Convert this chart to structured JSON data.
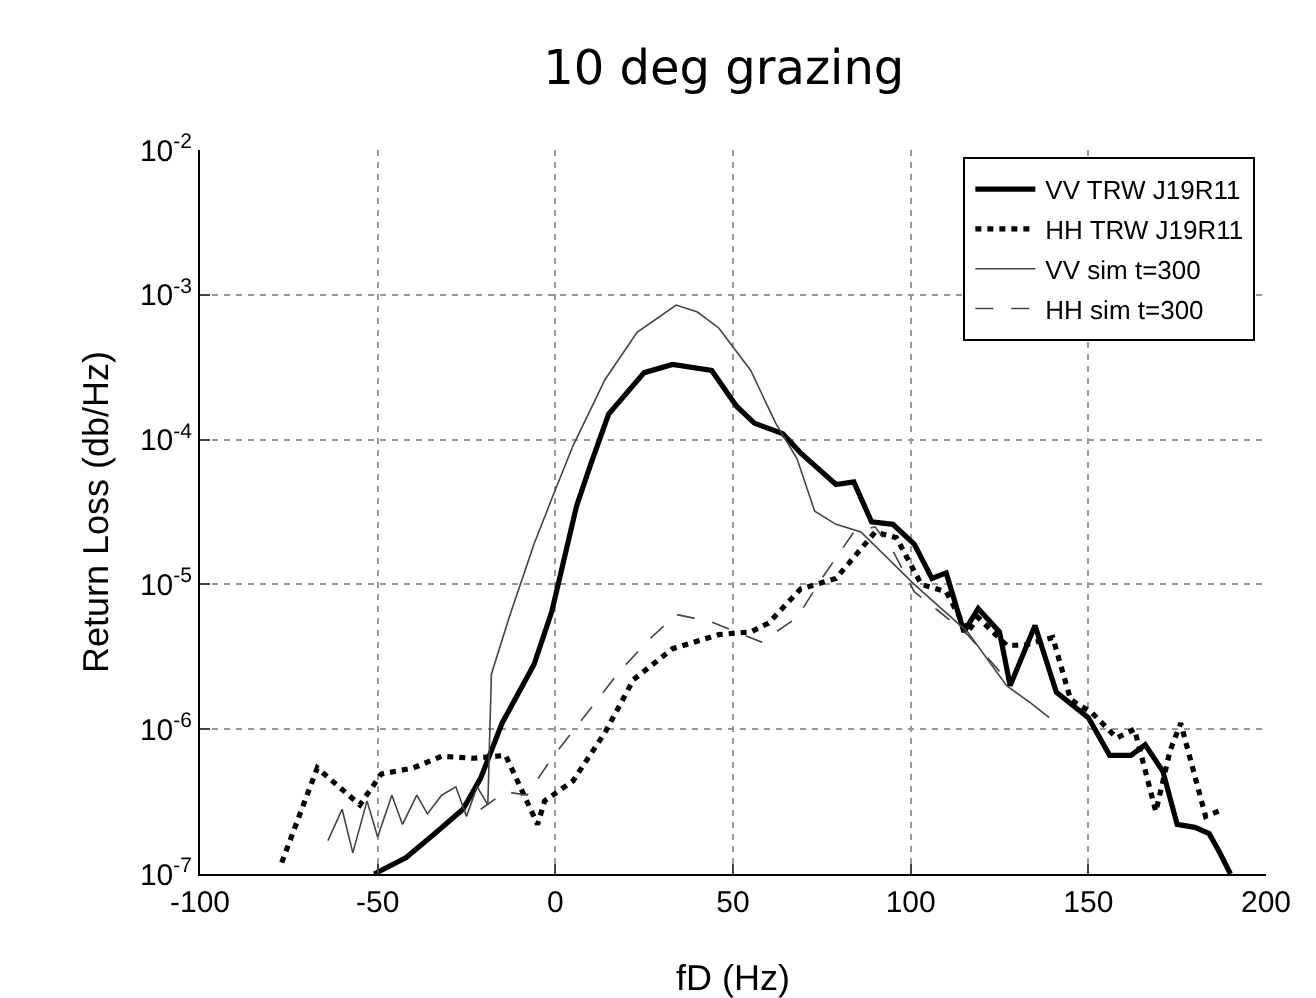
{
  "chart_data": {
    "type": "line",
    "title": "10 deg grazing",
    "xlabel": "fD (Hz)",
    "ylabel": "Return Loss (db/Hz)",
    "log": "y",
    "grid": true,
    "legend": "top right",
    "xlim": [
      -100,
      200
    ],
    "xticks": [
      -100,
      -50,
      0,
      50,
      100,
      150,
      200
    ],
    "ylim": [
      1e-07,
      0.01
    ],
    "yticks": [
      {
        "value": 1e-07,
        "label": "10$^{-7}$"
      },
      {
        "value": 1e-06,
        "label": "10$^{-6}$"
      },
      {
        "value": 1e-05,
        "label": "10$^{-5}$"
      },
      {
        "value": 0.0001,
        "label": "10$^{-4}$"
      },
      {
        "value": 0.001,
        "label": "10$^{-3}$"
      },
      {
        "value": 0.01,
        "label": "10$^{-2}$"
      }
    ],
    "series": [
      {
        "name": "VV TRW J19R11",
        "color": "#000000",
        "line_style": "solid",
        "x": [
          -51,
          -42,
          -34,
          -26,
          -21,
          -15,
          -6,
          -1,
          6,
          10,
          15,
          25,
          33,
          44,
          51,
          56,
          64,
          69,
          79,
          84,
          89,
          95,
          101,
          106,
          110,
          115,
          119,
          125,
          128,
          135,
          141,
          150,
          156,
          162,
          166,
          171,
          175,
          180,
          184,
          187,
          190
        ],
        "values": [
          1e-07,
          1.3e-07,
          1.9e-07,
          2.8e-07,
          4.6e-07,
          1.1e-06,
          2.8e-06,
          6.5e-06,
          3.5e-05,
          6.8e-05,
          0.00015,
          0.00029,
          0.00033,
          0.0003,
          0.00017,
          0.00013,
          0.00011,
          8.1e-05,
          4.9e-05,
          5.1e-05,
          2.7e-05,
          2.6e-05,
          1.9e-05,
          1.1e-05,
          1.2e-05,
          4.7e-06,
          6.8e-06,
          4.7e-06,
          2e-06,
          5.2e-06,
          1.8e-06,
          1.2e-06,
          6.6e-07,
          6.6e-07,
          7.8e-07,
          5.1e-07,
          2.2e-07,
          2.1e-07,
          1.9e-07,
          1.4e-07,
          1e-07
        ]
      },
      {
        "name": "HH TRW J19R11",
        "color": "#000000",
        "line_style": "dotted",
        "x": [
          -77,
          -67,
          -55,
          -49,
          -40,
          -32,
          -23,
          -14,
          -5,
          -3,
          5,
          14,
          22,
          33,
          46,
          55,
          60,
          69,
          79,
          90,
          96,
          103,
          110,
          116,
          119,
          127,
          132,
          140,
          145,
          151,
          158,
          163,
          169,
          173,
          176,
          183,
          188
        ],
        "values": [
          1.2e-07,
          5.4e-07,
          3e-07,
          4.9e-07,
          5.4e-07,
          6.5e-07,
          6.3e-07,
          6.6e-07,
          2.2e-07,
          3.2e-07,
          4.4e-07,
          9.5e-07,
          2.2e-06,
          3.6e-06,
          4.5e-06,
          4.7e-06,
          5.4e-06,
          9.3e-06,
          1.1e-05,
          2.3e-05,
          2.1e-05,
          1e-05,
          8.9e-06,
          4.7e-06,
          5.9e-06,
          3.8e-06,
          3.8e-06,
          4.3e-06,
          1.6e-06,
          1.3e-06,
          8.7e-07,
          1e-06,
          2.7e-07,
          7.1e-07,
          1.1e-06,
          2.5e-07,
          2.8e-07
        ]
      },
      {
        "name": "VV sim t=300",
        "color": "#444444",
        "line_style": "solid",
        "x": [
          -64,
          -60,
          -57,
          -53,
          -50,
          -46,
          -43,
          -39,
          -36,
          -32,
          -28,
          -25,
          -22,
          -19,
          -18,
          -13,
          -6,
          -1,
          5,
          14,
          23,
          34,
          40,
          46,
          55,
          62,
          68,
          73,
          79,
          86,
          101,
          116,
          127,
          134,
          139
        ],
        "values": [
          1.7e-07,
          2.8e-07,
          1.4e-07,
          3.2e-07,
          1.8e-07,
          3.5e-07,
          2.2e-07,
          3.5e-07,
          2.6e-07,
          3.5e-07,
          4e-07,
          2.5e-07,
          4e-07,
          3e-07,
          2.4e-06,
          5.9e-06,
          1.9e-05,
          3.9e-05,
          9.1e-05,
          0.00026,
          0.00055,
          0.00085,
          0.00076,
          0.00059,
          0.0003,
          0.00013,
          7.4e-05,
          3.2e-05,
          2.6e-05,
          2.3e-05,
          1e-05,
          4.7e-06,
          2e-06,
          1.5e-06,
          1.2e-06
        ]
      },
      {
        "name": "HH sim t=300",
        "color": "#444444",
        "line_style": "dashed",
        "x": [
          -21,
          -14,
          -8,
          -1,
          9,
          18,
          27,
          34,
          44,
          58,
          68,
          75,
          84,
          90,
          95,
          101,
          108,
          116,
          127
        ],
        "values": [
          2.8e-07,
          3.7e-07,
          3.5e-07,
          6.3e-07,
          1.3e-06,
          2.5e-06,
          4.3e-06,
          6.2e-06,
          5.5e-06,
          4e-06,
          5.9e-06,
          1.1e-05,
          2.3e-05,
          2.5e-05,
          1.7e-05,
          8.9e-06,
          6.5e-06,
          4.5e-06,
          2.2e-06
        ]
      }
    ]
  }
}
